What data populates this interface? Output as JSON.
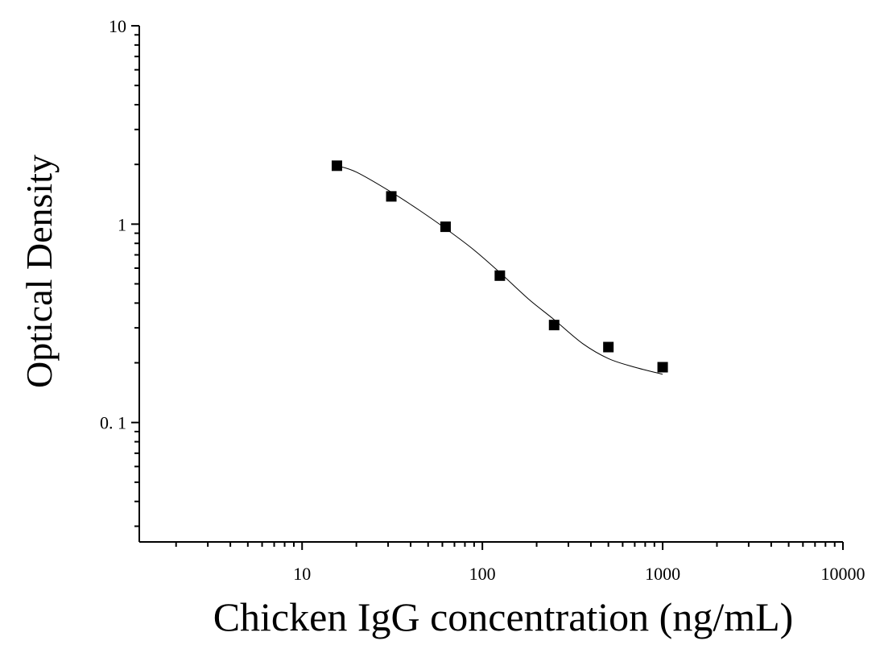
{
  "chart_data": {
    "type": "scatter",
    "title": "",
    "xlabel": "Chicken IgG concentration (ng/mL)",
    "ylabel": "Optical Density",
    "xscale": "log",
    "yscale": "log",
    "xlim": [
      1.25,
      10000
    ],
    "ylim": [
      0.025,
      10
    ],
    "x_tick_labels": [
      "10",
      "100",
      "1000",
      "10000"
    ],
    "y_tick_labels": [
      "0. 1",
      "1",
      "10"
    ],
    "series": [
      {
        "marker": "square",
        "color": "#000000",
        "x": [
          15.6,
          31.25,
          62.5,
          125,
          250,
          500,
          1000
        ],
        "y": [
          1.97,
          1.38,
          0.97,
          0.55,
          0.31,
          0.24,
          0.19
        ]
      }
    ],
    "fit_curve": {
      "type": "four-parameter logistic",
      "x": [
        15.6,
        20,
        31.25,
        45,
        62.5,
        90,
        125,
        180,
        250,
        360,
        500,
        700,
        1000
      ],
      "y": [
        1.97,
        1.83,
        1.45,
        1.17,
        0.95,
        0.74,
        0.57,
        0.42,
        0.33,
        0.25,
        0.21,
        0.19,
        0.175
      ]
    },
    "grid": false,
    "legend": "none"
  }
}
